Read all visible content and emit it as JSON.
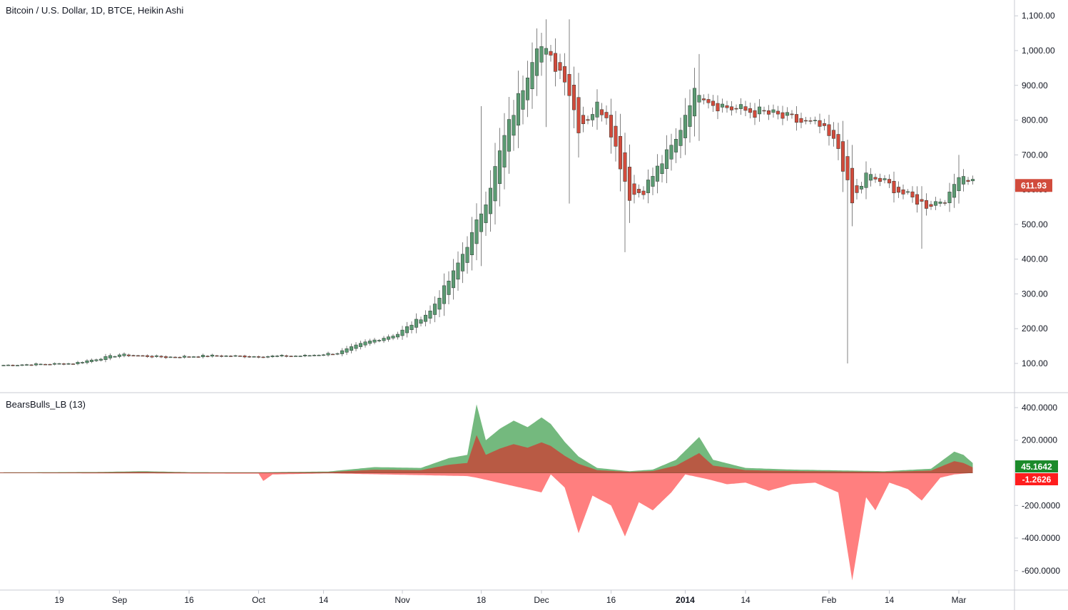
{
  "header": {
    "title": "Bitcoin / U.S. Dollar, 1D, BTCE, Heikin Ashi"
  },
  "indicator": {
    "title": "BearsBulls_LB (13)"
  },
  "colors": {
    "bull": "#5b9a72",
    "bear": "#d14b3c",
    "bull_fill": "#74b97e",
    "bear_fill": "#ff7f7f",
    "overlap_fill": "#b85a44",
    "grid": "#e0e3eb",
    "axis_text": "#131722"
  },
  "chart_data": [
    {
      "type": "candlestick",
      "title": "Bitcoin / U.S. Dollar, 1D, BTCE, Heikin Ashi",
      "ylim": [
        50,
        1130
      ],
      "yticks": [
        "100.00",
        "200.00",
        "300.00",
        "400.00",
        "500.00",
        "600.00",
        "700.00",
        "800.00",
        "900.00",
        "1,000.00",
        "1,100.00"
      ],
      "ytick_values": [
        100,
        200,
        300,
        400,
        500,
        600,
        700,
        800,
        900,
        1000,
        1100
      ],
      "xticks": [
        {
          "label": "19",
          "day": 12
        },
        {
          "label": "Sep",
          "day": 25
        },
        {
          "label": "16",
          "day": 40
        },
        {
          "label": "Oct",
          "day": 55
        },
        {
          "label": "14",
          "day": 69
        },
        {
          "label": "Nov",
          "day": 86
        },
        {
          "label": "18",
          "day": 103
        },
        {
          "label": "Dec",
          "day": 116
        },
        {
          "label": "16",
          "day": 131
        },
        {
          "label": "2014",
          "day": 147
        },
        {
          "label": "14",
          "day": 160
        },
        {
          "label": "Feb",
          "day": 178
        },
        {
          "label": "14",
          "day": 191
        },
        {
          "label": "Mar",
          "day": 206
        }
      ],
      "last_price": "611.93",
      "anchors": [
        [
          0,
          95
        ],
        [
          15,
          100
        ],
        [
          25,
          125
        ],
        [
          35,
          118
        ],
        [
          45,
          122
        ],
        [
          55,
          120
        ],
        [
          65,
          122
        ],
        [
          72,
          130
        ],
        [
          78,
          160
        ],
        [
          85,
          185
        ],
        [
          92,
          250
        ],
        [
          97,
          360
        ],
        [
          101,
          470
        ],
        [
          104,
          570
        ],
        [
          108,
          750
        ],
        [
          112,
          900
        ],
        [
          115,
          1030
        ],
        [
          118,
          970
        ],
        [
          121,
          930
        ],
        [
          124,
          780
        ],
        [
          128,
          840
        ],
        [
          130,
          820
        ],
        [
          132,
          720
        ],
        [
          135,
          580
        ],
        [
          138,
          600
        ],
        [
          141,
          660
        ],
        [
          145,
          740
        ],
        [
          148,
          860
        ],
        [
          150,
          890
        ],
        [
          153,
          850
        ],
        [
          158,
          830
        ],
        [
          164,
          820
        ],
        [
          170,
          800
        ],
        [
          176,
          780
        ],
        [
          180,
          720
        ],
        [
          183,
          560
        ],
        [
          186,
          640
        ],
        [
          190,
          620
        ],
        [
          195,
          580
        ],
        [
          199,
          555
        ],
        [
          204,
          580
        ],
        [
          206,
          650
        ],
        [
          209,
          625
        ]
      ],
      "spikes": [
        {
          "day": 103,
          "high": 840,
          "low": 380
        },
        {
          "day": 117,
          "high": 1090,
          "low": 780
        },
        {
          "day": 122,
          "high": 1090,
          "low": 560
        },
        {
          "day": 134,
          "high": 600,
          "low": 420
        },
        {
          "day": 150,
          "high": 990,
          "low": 740
        },
        {
          "day": 182,
          "high": 710,
          "low": 100
        },
        {
          "day": 198,
          "high": 610,
          "low": 430
        },
        {
          "day": 206,
          "high": 700,
          "low": 560
        }
      ]
    },
    {
      "type": "area",
      "title": "BearsBulls_LB (13)",
      "ylim": [
        -680,
        460
      ],
      "yticks": [
        "-600.0000",
        "-400.0000",
        "-200.0000",
        "0.0000",
        "200.0000",
        "400.0000"
      ],
      "ytick_values": [
        -600,
        -400,
        -200,
        0,
        200,
        400
      ],
      "series": [
        {
          "name": "",
          "last_value": "45.1642",
          "points": [
            [
              0,
              3
            ],
            [
              20,
              5
            ],
            [
              30,
              10
            ],
            [
              40,
              4
            ],
            [
              55,
              3
            ],
            [
              70,
              8
            ],
            [
              80,
              35
            ],
            [
              90,
              30
            ],
            [
              96,
              90
            ],
            [
              100,
              110
            ],
            [
              102,
              420
            ],
            [
              104,
              200
            ],
            [
              107,
              270
            ],
            [
              110,
              320
            ],
            [
              113,
              280
            ],
            [
              116,
              340
            ],
            [
              118,
              300
            ],
            [
              121,
              190
            ],
            [
              124,
              100
            ],
            [
              128,
              30
            ],
            [
              135,
              10
            ],
            [
              140,
              20
            ],
            [
              145,
              80
            ],
            [
              150,
              220
            ],
            [
              153,
              80
            ],
            [
              160,
              30
            ],
            [
              170,
              20
            ],
            [
              180,
              15
            ],
            [
              190,
              10
            ],
            [
              200,
              25
            ],
            [
              205,
              130
            ],
            [
              207,
              110
            ],
            [
              209,
              60
            ]
          ]
        },
        {
          "name": "",
          "last_value": "-1.2626",
          "points": [
            [
              0,
              -2
            ],
            [
              20,
              -3
            ],
            [
              55,
              -5
            ],
            [
              56,
              -50
            ],
            [
              58,
              -10
            ],
            [
              70,
              -3
            ],
            [
              100,
              -20
            ],
            [
              102,
              -30
            ],
            [
              116,
              -120
            ],
            [
              118,
              -10
            ],
            [
              121,
              -90
            ],
            [
              124,
              -370
            ],
            [
              127,
              -140
            ],
            [
              131,
              -200
            ],
            [
              134,
              -390
            ],
            [
              137,
              -180
            ],
            [
              140,
              -230
            ],
            [
              144,
              -120
            ],
            [
              147,
              -10
            ],
            [
              152,
              -40
            ],
            [
              156,
              -70
            ],
            [
              160,
              -60
            ],
            [
              165,
              -110
            ],
            [
              170,
              -70
            ],
            [
              175,
              -60
            ],
            [
              180,
              -120
            ],
            [
              183,
              -660
            ],
            [
              186,
              -150
            ],
            [
              188,
              -230
            ],
            [
              191,
              -60
            ],
            [
              195,
              -100
            ],
            [
              198,
              -170
            ],
            [
              202,
              -30
            ],
            [
              205,
              -10
            ],
            [
              209,
              0
            ]
          ]
        }
      ]
    }
  ]
}
